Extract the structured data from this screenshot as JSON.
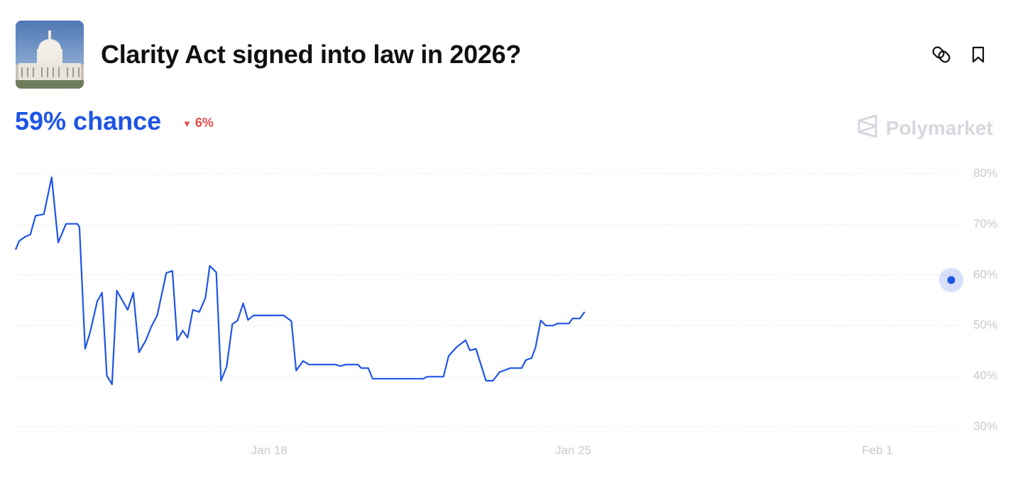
{
  "header": {
    "title": "Clarity Act signed into law in 2026?",
    "brand": "Polymarket"
  },
  "chart_data": {
    "type": "line",
    "current": {
      "value": 59,
      "label": "59% chance"
    },
    "change": {
      "value": 6,
      "label": "6%",
      "direction": "down"
    },
    "color": "#1f55e6",
    "grid": true,
    "xlim": [
      12.16,
      33.8
    ],
    "ylim": [
      30,
      80
    ],
    "xticks": [
      {
        "value": 18,
        "label": "Jan 18"
      },
      {
        "value": 25,
        "label": "Jan 25"
      },
      {
        "value": 32,
        "label": "Feb 1"
      }
    ],
    "yticks": [
      {
        "value": 30,
        "label": "30%"
      },
      {
        "value": 40,
        "label": "40%"
      },
      {
        "value": 50,
        "label": "50%"
      },
      {
        "value": 60,
        "label": "60%"
      },
      {
        "value": 70,
        "label": "70%"
      },
      {
        "value": 80,
        "label": "80%"
      }
    ],
    "x": [
      12.16,
      12.24,
      12.37,
      12.5,
      12.62,
      12.81,
      12.99,
      13.14,
      13.32,
      13.58,
      13.63,
      13.76,
      13.87,
      14.04,
      14.15,
      14.26,
      14.38,
      14.49,
      14.74,
      14.87,
      15.0,
      15.16,
      15.29,
      15.42,
      15.63,
      15.77,
      15.88,
      16.01,
      16.12,
      16.24,
      16.39,
      16.53,
      16.63,
      16.78,
      16.89,
      17.02,
      17.15,
      17.27,
      17.4,
      17.51,
      17.64,
      18.33,
      18.51,
      18.62,
      18.78,
      18.91,
      19.53,
      19.63,
      19.76,
      20.04,
      20.12,
      20.28,
      20.38,
      21.54,
      21.64,
      22.01,
      22.13,
      22.32,
      22.52,
      22.62,
      22.76,
      22.99,
      23.15,
      23.3,
      23.55,
      23.81,
      23.91,
      24.04,
      24.13,
      24.25,
      24.37,
      24.53,
      24.64,
      24.9,
      24.98,
      25.15,
      25.26
    ],
    "values": [
      65.0,
      66.7,
      67.5,
      68.0,
      71.7,
      72.0,
      79.3,
      66.4,
      70.1,
      70.1,
      69.5,
      45.4,
      48.5,
      54.8,
      56.5,
      40.1,
      38.4,
      56.9,
      53.1,
      56.5,
      44.7,
      47.1,
      49.9,
      52.0,
      60.4,
      60.8,
      47.1,
      49.0,
      47.6,
      53.1,
      52.7,
      55.5,
      61.8,
      60.5,
      39.1,
      41.9,
      50.3,
      51.0,
      54.4,
      51.1,
      52.0,
      52.0,
      50.9,
      41.1,
      43.0,
      42.3,
      42.3,
      42.0,
      42.3,
      42.3,
      41.6,
      41.6,
      39.5,
      39.5,
      39.9,
      39.9,
      44.0,
      45.8,
      47.1,
      45.1,
      45.4,
      39.1,
      39.1,
      40.8,
      41.6,
      41.6,
      43.2,
      43.6,
      45.7,
      51.0,
      50.0,
      50.0,
      50.4,
      50.4,
      51.4,
      51.4,
      52.7
    ]
  }
}
